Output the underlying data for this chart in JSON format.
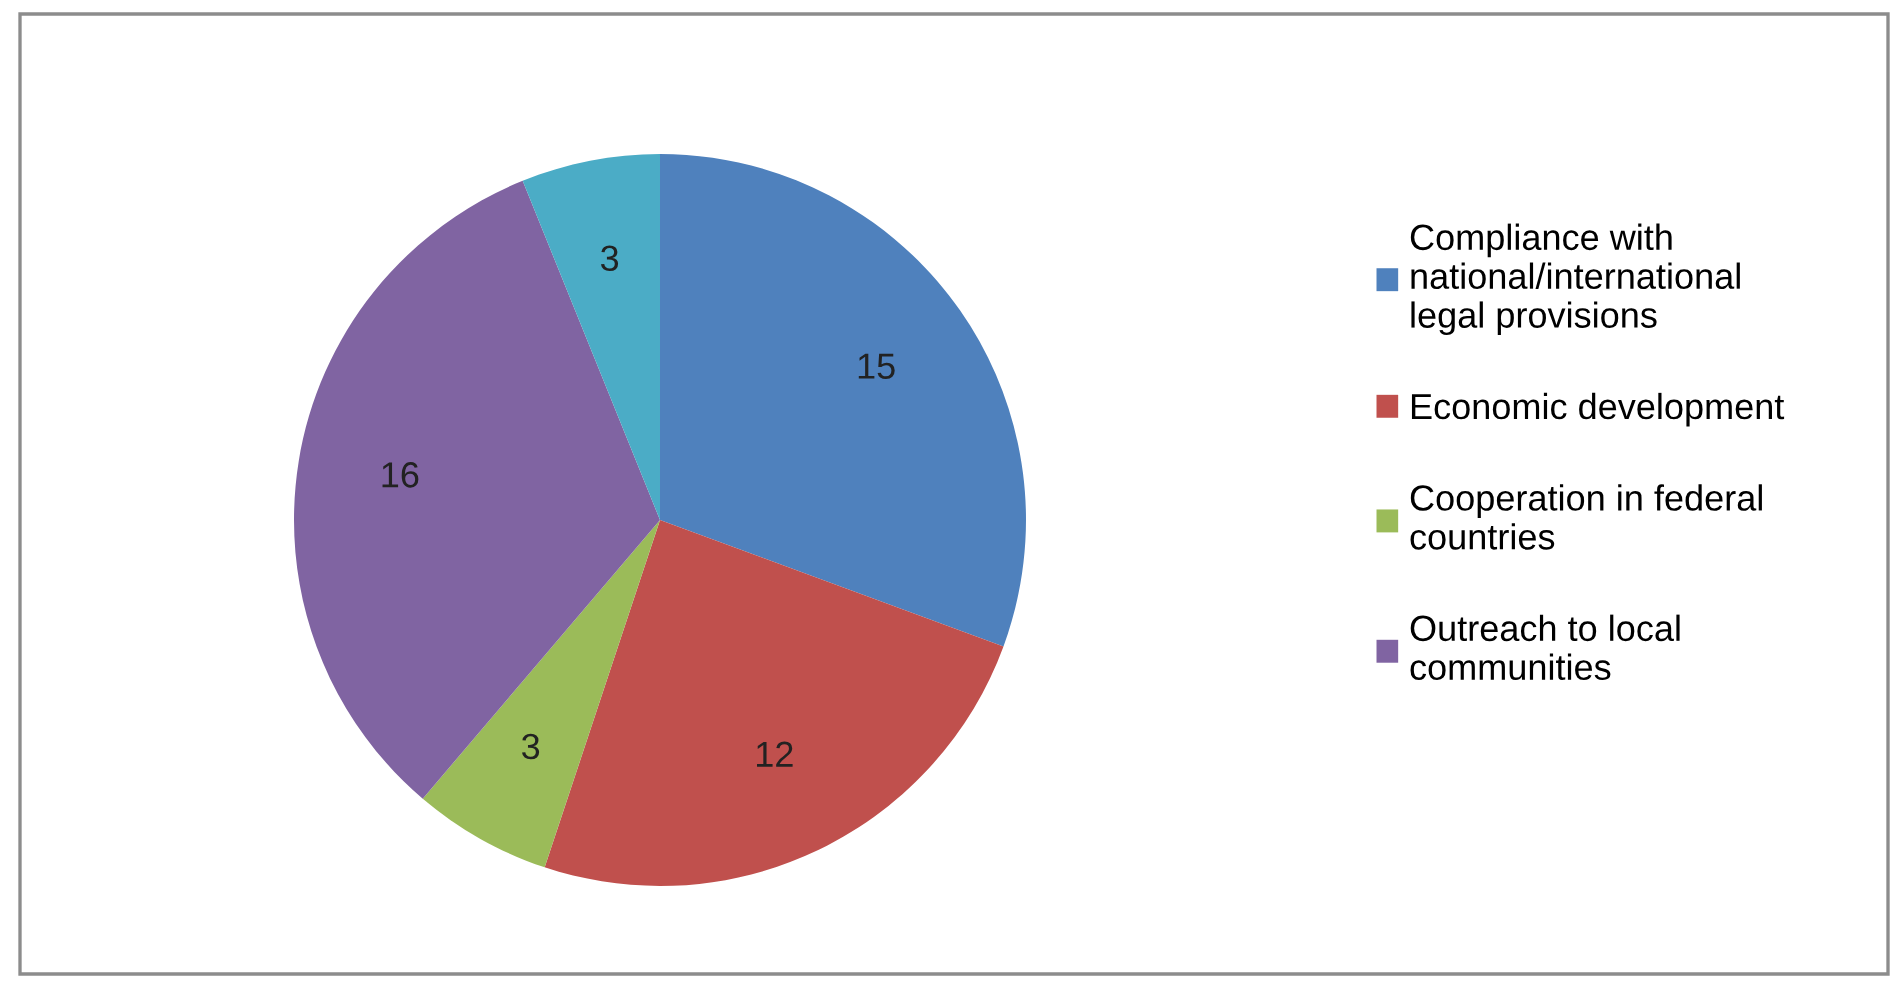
{
  "chart_data": {
    "type": "pie",
    "categories": [
      "Compliance with\nnational/international\nlegal provisions",
      "Economic development",
      "Cooperation in federal\ncountries",
      "Outreach to local\ncommunities",
      null
    ],
    "values": [
      15,
      12,
      3,
      16,
      3
    ],
    "colors": [
      "#4f81bd",
      "#c0504d",
      "#9bbb59",
      "#8064a2",
      "#4bacc6"
    ],
    "data_labels": true,
    "legend": "right"
  }
}
